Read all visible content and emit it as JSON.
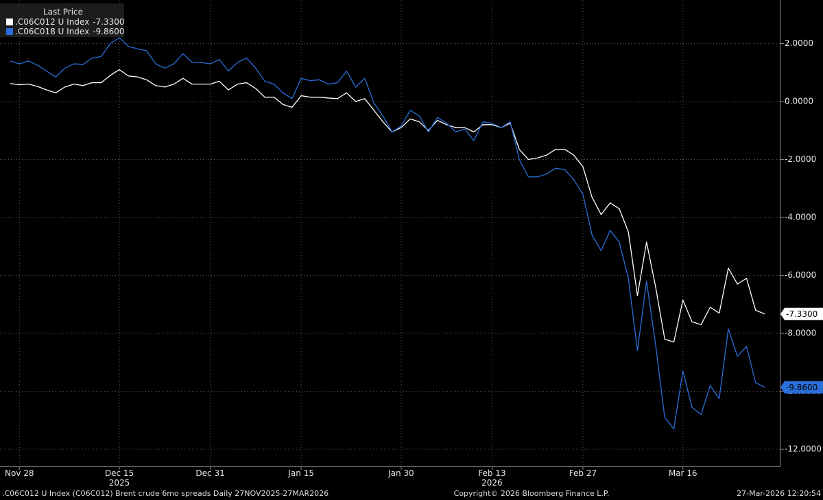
{
  "chart_data": {
    "type": "line",
    "legend_title": "Last Price",
    "x": [
      "2025-11-27",
      "2025-11-28",
      "2025-12-01",
      "2025-12-02",
      "2025-12-03",
      "2025-12-04",
      "2025-12-05",
      "2025-12-08",
      "2025-12-09",
      "2025-12-10",
      "2025-12-11",
      "2025-12-12",
      "2025-12-15",
      "2025-12-16",
      "2025-12-17",
      "2025-12-18",
      "2025-12-19",
      "2025-12-22",
      "2025-12-23",
      "2025-12-24",
      "2025-12-29",
      "2025-12-30",
      "2025-12-31",
      "2026-01-02",
      "2026-01-05",
      "2026-01-06",
      "2026-01-07",
      "2026-01-08",
      "2026-01-09",
      "2026-01-12",
      "2026-01-13",
      "2026-01-14",
      "2026-01-15",
      "2026-01-16",
      "2026-01-19",
      "2026-01-20",
      "2026-01-21",
      "2026-01-22",
      "2026-01-23",
      "2026-01-26",
      "2026-01-27",
      "2026-01-28",
      "2026-01-29",
      "2026-01-30",
      "2026-02-02",
      "2026-02-03",
      "2026-02-04",
      "2026-02-05",
      "2026-02-06",
      "2026-02-09",
      "2026-02-10",
      "2026-02-11",
      "2026-02-12",
      "2026-02-13",
      "2026-02-16",
      "2026-02-17",
      "2026-02-18",
      "2026-02-19",
      "2026-02-20",
      "2026-02-23",
      "2026-02-24",
      "2026-02-25",
      "2026-02-26",
      "2026-02-27",
      "2026-03-02",
      "2026-03-03",
      "2026-03-04",
      "2026-03-05",
      "2026-03-06",
      "2026-03-09",
      "2026-03-10",
      "2026-03-11",
      "2026-03-12",
      "2026-03-13",
      "2026-03-16",
      "2026-03-17",
      "2026-03-18",
      "2026-03-19",
      "2026-03-20",
      "2026-03-23",
      "2026-03-24",
      "2026-03-25",
      "2026-03-26",
      "2026-03-27"
    ],
    "series": [
      {
        "name": ".C06C012 U Index",
        "color": "#ffffff",
        "tag_text_color": "#000000",
        "values": [
          0.62,
          0.58,
          0.6,
          0.52,
          0.4,
          0.3,
          0.5,
          0.6,
          0.55,
          0.65,
          0.65,
          0.9,
          1.1,
          0.88,
          0.85,
          0.75,
          0.55,
          0.5,
          0.6,
          0.8,
          0.6,
          0.6,
          0.6,
          0.7,
          0.4,
          0.6,
          0.65,
          0.45,
          0.15,
          0.15,
          -0.1,
          -0.2,
          0.2,
          0.15,
          0.15,
          0.12,
          0.1,
          0.3,
          0.0,
          0.1,
          -0.3,
          -0.7,
          -1.05,
          -0.9,
          -0.6,
          -0.7,
          -1.0,
          -0.65,
          -0.8,
          -0.9,
          -0.9,
          -1.05,
          -0.8,
          -0.8,
          -0.9,
          -0.75,
          -1.65,
          -2.0,
          -1.95,
          -1.85,
          -1.65,
          -1.65,
          -1.85,
          -2.25,
          -3.3,
          -3.9,
          -3.5,
          -3.7,
          -4.5,
          -6.7,
          -4.85,
          -6.4,
          -8.2,
          -8.3,
          -6.85,
          -7.6,
          -7.7,
          -7.1,
          -7.3,
          -5.75,
          -6.3,
          -6.1,
          -7.2,
          -7.33
        ],
        "value_labels": [
          null,
          null,
          null,
          null,
          null,
          null,
          null,
          null,
          null,
          null,
          null,
          null,
          null,
          null,
          null,
          null,
          null,
          null,
          null,
          null,
          null,
          null,
          null,
          null,
          null,
          null,
          null,
          null,
          null,
          null,
          null,
          null,
          null,
          null,
          null,
          null,
          null,
          null,
          null,
          null,
          null,
          null,
          null,
          null,
          null,
          null,
          null,
          null,
          null,
          null,
          null,
          null,
          null,
          null,
          null,
          null,
          null,
          null,
          null,
          null,
          null,
          null,
          null,
          null,
          null,
          null,
          null,
          null,
          null,
          null,
          null,
          null,
          null,
          null,
          null,
          null,
          null,
          null,
          null,
          null,
          null,
          null,
          null,
          "-7.3300"
        ]
      },
      {
        "name": ".C06C018 U Index",
        "color": "#2a6fdb",
        "tag_text_color": "#000000",
        "values": [
          1.4,
          1.3,
          1.4,
          1.25,
          1.05,
          0.85,
          1.15,
          1.3,
          1.28,
          1.5,
          1.55,
          2.0,
          2.2,
          1.9,
          1.82,
          1.75,
          1.3,
          1.15,
          1.3,
          1.65,
          1.35,
          1.35,
          1.3,
          1.45,
          1.05,
          1.35,
          1.5,
          1.15,
          0.7,
          0.6,
          0.3,
          0.1,
          0.8,
          0.72,
          0.75,
          0.6,
          0.65,
          1.05,
          0.5,
          0.8,
          -0.05,
          -0.5,
          -1.05,
          -0.85,
          -0.3,
          -0.5,
          -1.05,
          -0.55,
          -0.75,
          -1.05,
          -0.95,
          -1.35,
          -0.7,
          -0.75,
          -0.9,
          -0.7,
          -2.0,
          -2.6,
          -2.6,
          -2.5,
          -2.3,
          -2.35,
          -2.7,
          -3.2,
          -4.6,
          -5.15,
          -4.45,
          -4.85,
          -6.1,
          -8.6,
          -6.2,
          -8.4,
          -10.9,
          -11.3,
          -9.3,
          -10.55,
          -10.8,
          -9.8,
          -10.25,
          -7.85,
          -8.8,
          -8.45,
          -9.7,
          -9.86
        ],
        "value_labels": [
          null,
          null,
          null,
          null,
          null,
          null,
          null,
          null,
          null,
          null,
          null,
          null,
          null,
          null,
          null,
          null,
          null,
          null,
          null,
          null,
          null,
          null,
          null,
          null,
          null,
          null,
          null,
          null,
          null,
          null,
          null,
          null,
          null,
          null,
          null,
          null,
          null,
          null,
          null,
          null,
          null,
          null,
          null,
          null,
          null,
          null,
          null,
          null,
          null,
          null,
          null,
          null,
          null,
          null,
          null,
          null,
          null,
          null,
          null,
          null,
          null,
          null,
          null,
          null,
          null,
          null,
          null,
          null,
          null,
          null,
          null,
          null,
          null,
          null,
          null,
          null,
          null,
          null,
          null,
          null,
          null,
          null,
          null,
          "-9.8600"
        ]
      }
    ],
    "ylim": [
      -12.6,
      3.4
    ],
    "yticks": [
      {
        "value": 2,
        "label": "2.0000"
      },
      {
        "value": 0,
        "label": "0.0000"
      },
      {
        "value": -2,
        "label": "-2.0000"
      },
      {
        "value": -4,
        "label": "-4.0000"
      },
      {
        "value": -6,
        "label": "-6.0000"
      },
      {
        "value": -8,
        "label": "-8.0000"
      },
      {
        "value": -10,
        "label": "-10.0000"
      },
      {
        "value": -12,
        "label": "-12.0000"
      }
    ],
    "xticks": [
      {
        "value": "2025-11-28",
        "label": "Nov 28"
      },
      {
        "value": "2025-12-15",
        "label": "Dec 15"
      },
      {
        "value": "2025-12-31",
        "label": "Dec 31"
      },
      {
        "value": "2026-01-15",
        "label": "Jan 15"
      },
      {
        "value": "2026-01-30",
        "label": "Jan 30"
      },
      {
        "value": "2026-02-13",
        "label": "Feb 13"
      },
      {
        "value": "2026-02-27",
        "label": "Feb 27"
      },
      {
        "value": "2026-03-16",
        "label": "Mar 16"
      }
    ],
    "year_labels": [
      {
        "value": "2025-12-15",
        "label": "2025"
      },
      {
        "value": "2026-02-13",
        "label": "2026"
      }
    ],
    "grid": true,
    "legend": "upper left",
    "footer_left": ".C06C012 U Index (C06C012) Brent crude 6mo spreads Daily 27NOV2025-27MAR2026",
    "footer_center": "Copyright© 2026 Bloomberg Finance L.P.",
    "footer_right": "27-Mar-2026 12:20:54"
  }
}
